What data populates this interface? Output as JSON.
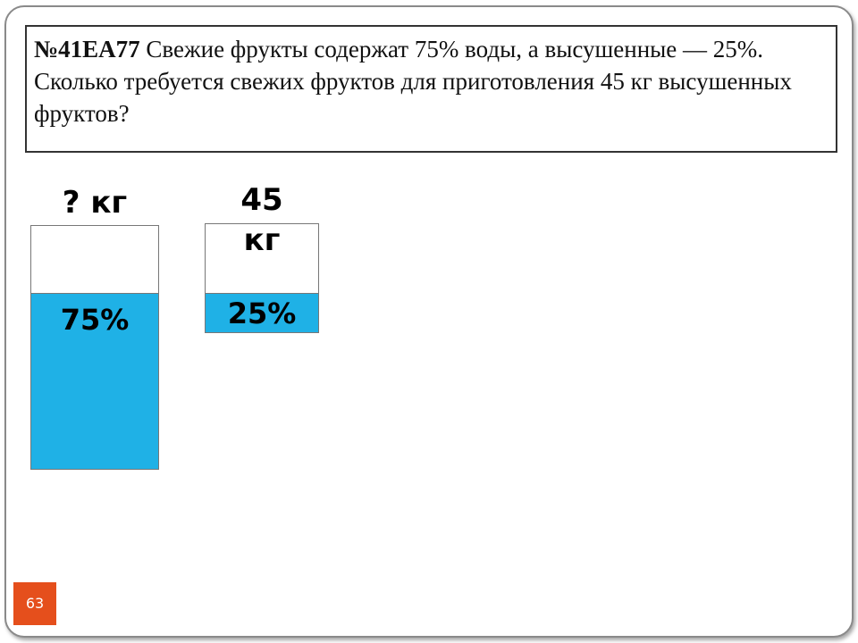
{
  "problem": {
    "id": "№41ЕА77",
    "text": "Свежие фрукты содержат 75% воды, а высушенные — 25%. Сколько требуется свежих фруктов для приготовления 45 кг высушенных фруктов?"
  },
  "containers": [
    {
      "label": "? кг",
      "fill_label": "75%"
    },
    {
      "label": "45 кг",
      "fill_label": "25%"
    }
  ],
  "page_number": "63"
}
